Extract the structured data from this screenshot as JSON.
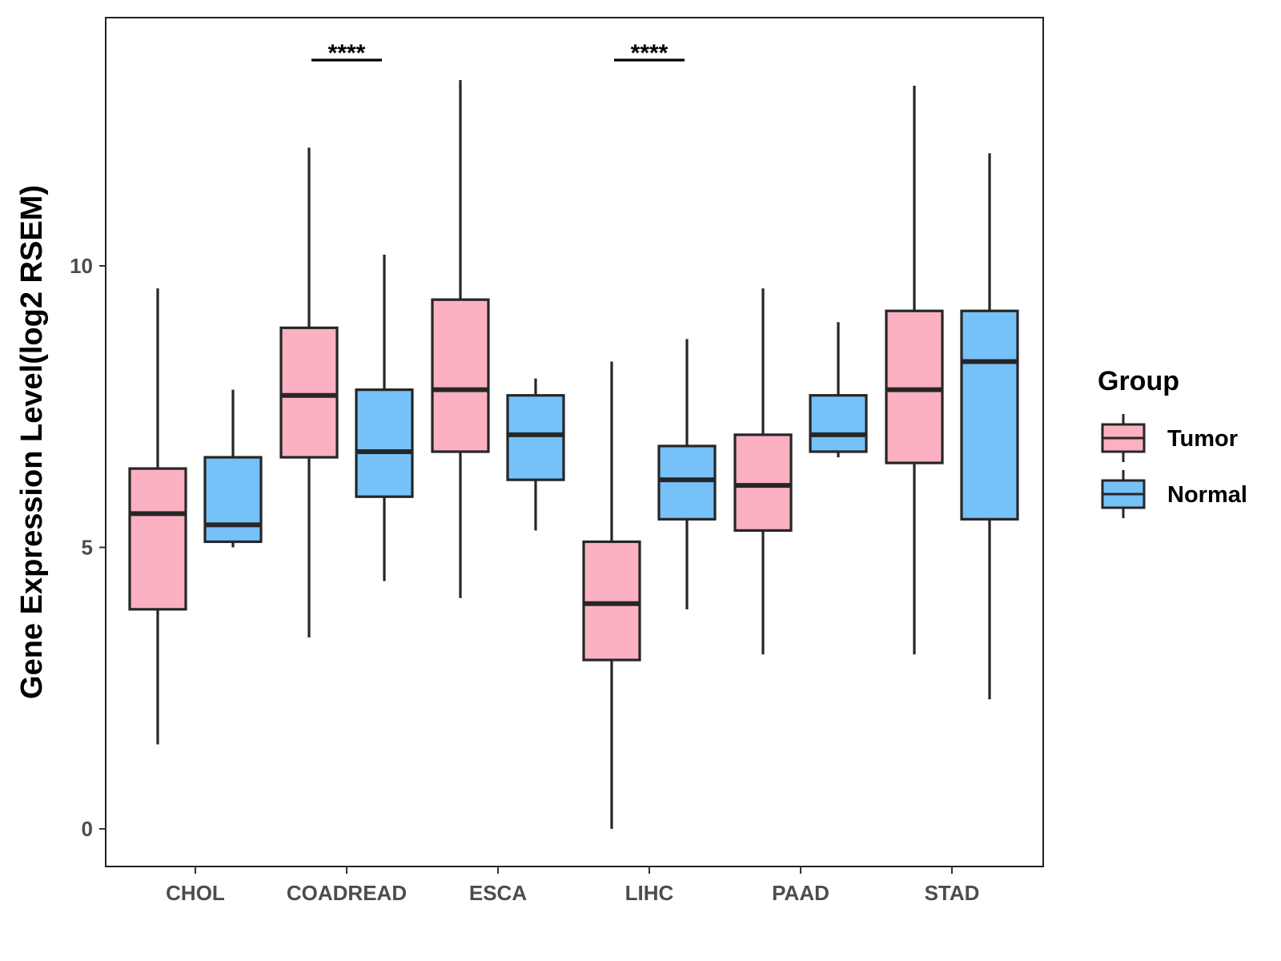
{
  "chart_data": {
    "type": "boxplot",
    "title": "",
    "xlabel": "",
    "ylabel": "Gene Expression Level(log2 RSEM)",
    "ylim": [
      -0.7,
      14.4
    ],
    "yticks": [
      0,
      5,
      10
    ],
    "grid": false,
    "categories": [
      "CHOL",
      "COADREAD",
      "ESCA",
      "LIHC",
      "PAAD",
      "STAD"
    ],
    "legend": {
      "title": "Group",
      "position": "right",
      "entries": [
        {
          "name": "Tumor",
          "color": "#FBB1C2"
        },
        {
          "name": "Normal",
          "color": "#76C1F8"
        }
      ]
    },
    "series": [
      {
        "name": "Tumor",
        "color": "#FBB1C2",
        "boxes": [
          {
            "category": "CHOL",
            "min": 1.5,
            "q1": 3.9,
            "median": 5.6,
            "q3": 6.4,
            "max": 9.6
          },
          {
            "category": "COADREAD",
            "min": 3.4,
            "q1": 6.6,
            "median": 7.7,
            "q3": 8.9,
            "max": 12.1
          },
          {
            "category": "ESCA",
            "min": 4.1,
            "q1": 6.7,
            "median": 7.8,
            "q3": 9.4,
            "max": 13.3
          },
          {
            "category": "LIHC",
            "min": 0.0,
            "q1": 3.0,
            "median": 4.0,
            "q3": 5.1,
            "max": 8.3
          },
          {
            "category": "PAAD",
            "min": 3.1,
            "q1": 5.3,
            "median": 6.1,
            "q3": 7.0,
            "max": 9.6
          },
          {
            "category": "STAD",
            "min": 3.1,
            "q1": 6.5,
            "median": 7.8,
            "q3": 9.2,
            "max": 13.2
          }
        ]
      },
      {
        "name": "Normal",
        "color": "#76C1F8",
        "boxes": [
          {
            "category": "CHOL",
            "min": 5.0,
            "q1": 5.1,
            "median": 5.4,
            "q3": 6.6,
            "max": 7.8
          },
          {
            "category": "COADREAD",
            "min": 4.4,
            "q1": 5.9,
            "median": 6.7,
            "q3": 7.8,
            "max": 10.2
          },
          {
            "category": "ESCA",
            "min": 5.3,
            "q1": 6.2,
            "median": 7.0,
            "q3": 7.7,
            "max": 8.0
          },
          {
            "category": "LIHC",
            "min": 3.9,
            "q1": 5.5,
            "median": 6.2,
            "q3": 6.8,
            "max": 8.7
          },
          {
            "category": "PAAD",
            "min": 6.6,
            "q1": 6.7,
            "median": 7.0,
            "q3": 7.7,
            "max": 9.0
          },
          {
            "category": "STAD",
            "min": 2.3,
            "q1": 5.5,
            "median": 8.3,
            "q3": 9.2,
            "max": 12.0
          }
        ]
      }
    ],
    "annotations": [
      {
        "category": "COADREAD",
        "text": "****"
      },
      {
        "category": "LIHC",
        "text": "****"
      }
    ]
  }
}
